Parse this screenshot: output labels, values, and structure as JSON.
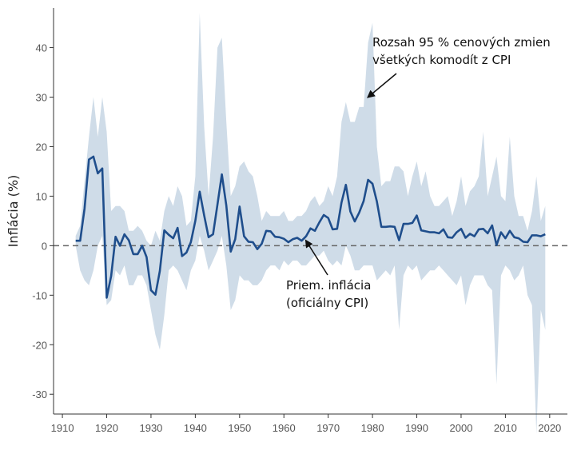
{
  "chart_data": {
    "type": "line",
    "title": "",
    "xlabel": "",
    "ylabel": "Inflácia  (%)",
    "xlim": [
      1908,
      2024
    ],
    "ylim": [
      -34,
      48
    ],
    "x_ticks": [
      1910,
      1920,
      1930,
      1940,
      1950,
      1960,
      1970,
      1980,
      1990,
      2000,
      2010,
      2020
    ],
    "y_ticks": [
      -30,
      -20,
      -10,
      0,
      10,
      20,
      30,
      40
    ],
    "grid": false,
    "zero_line": true,
    "colors": {
      "line": "#1f4e8c",
      "band": "#cfdce8",
      "zero": "#666666",
      "axis": "#333333"
    },
    "annotations": [
      {
        "id": "band",
        "lines": [
          "Rozsah 95 % cenových zmien",
          "všetkých komodít z CPI"
        ],
        "arrow_to": [
          1979,
          30
        ]
      },
      {
        "id": "line",
        "lines": [
          "Priem. inflácia",
          "(oficiálny CPI)"
        ],
        "arrow_to": [
          1965,
          1
        ]
      }
    ],
    "series": [
      {
        "name": "Priem. inflácia (oficiálny CPI)",
        "type": "line",
        "x": [
          1913,
          1914,
          1915,
          1916,
          1917,
          1918,
          1919,
          1920,
          1921,
          1922,
          1923,
          1924,
          1925,
          1926,
          1927,
          1928,
          1929,
          1930,
          1931,
          1932,
          1933,
          1934,
          1935,
          1936,
          1937,
          1938,
          1939,
          1940,
          1941,
          1942,
          1943,
          1944,
          1945,
          1946,
          1947,
          1948,
          1949,
          1950,
          1951,
          1952,
          1953,
          1954,
          1955,
          1956,
          1957,
          1958,
          1959,
          1960,
          1961,
          1962,
          1963,
          1964,
          1965,
          1966,
          1967,
          1968,
          1969,
          1970,
          1971,
          1972,
          1973,
          1974,
          1975,
          1976,
          1977,
          1978,
          1979,
          1980,
          1981,
          1982,
          1983,
          1984,
          1985,
          1986,
          1987,
          1988,
          1989,
          1990,
          1991,
          1992,
          1993,
          1994,
          1995,
          1996,
          1997,
          1998,
          1999,
          2000,
          2001,
          2002,
          2003,
          2004,
          2005,
          2006,
          2007,
          2008,
          2009,
          2010,
          2011,
          2012,
          2013,
          2014,
          2015,
          2016,
          2017,
          2018,
          2019
        ],
        "y": [
          1.0,
          1.0,
          7.5,
          17.4,
          18.0,
          14.6,
          15.6,
          -10.5,
          -6.1,
          1.8,
          0.0,
          2.3,
          1.1,
          -1.7,
          -1.7,
          0.0,
          -2.3,
          -9.0,
          -9.9,
          -5.1,
          3.1,
          2.2,
          1.5,
          3.6,
          -2.1,
          -1.4,
          0.7,
          5.0,
          10.9,
          6.1,
          1.7,
          2.3,
          8.3,
          14.4,
          8.1,
          -1.2,
          1.3,
          7.9,
          1.9,
          0.8,
          0.7,
          -0.7,
          0.4,
          3.0,
          2.9,
          1.8,
          1.7,
          1.4,
          0.7,
          1.3,
          1.6,
          1.0,
          1.9,
          3.5,
          3.0,
          4.7,
          6.2,
          5.6,
          3.3,
          3.4,
          8.7,
          12.3,
          6.9,
          4.9,
          6.7,
          9.0,
          13.3,
          12.5,
          8.9,
          3.8,
          3.8,
          3.9,
          3.8,
          1.1,
          4.4,
          4.4,
          4.6,
          6.1,
          3.1,
          2.9,
          2.7,
          2.7,
          2.5,
          3.3,
          1.7,
          1.6,
          2.7,
          3.4,
          1.6,
          2.4,
          1.9,
          3.3,
          3.4,
          2.5,
          4.1,
          0.1,
          2.7,
          1.5,
          3.0,
          1.7,
          1.5,
          0.8,
          0.7,
          2.1,
          2.1,
          1.9,
          2.3
        ]
      },
      {
        "name": "Rozsah 95 % cenových zmien všetkých komodít z CPI",
        "type": "area",
        "x": [
          1913,
          1914,
          1915,
          1916,
          1917,
          1918,
          1919,
          1920,
          1921,
          1922,
          1923,
          1924,
          1925,
          1926,
          1927,
          1928,
          1929,
          1930,
          1931,
          1932,
          1933,
          1934,
          1935,
          1936,
          1937,
          1938,
          1939,
          1940,
          1941,
          1942,
          1943,
          1944,
          1945,
          1946,
          1947,
          1948,
          1949,
          1950,
          1951,
          1952,
          1953,
          1954,
          1955,
          1956,
          1957,
          1958,
          1959,
          1960,
          1961,
          1962,
          1963,
          1964,
          1965,
          1966,
          1967,
          1968,
          1969,
          1970,
          1971,
          1972,
          1973,
          1974,
          1975,
          1976,
          1977,
          1978,
          1979,
          1980,
          1981,
          1982,
          1983,
          1984,
          1985,
          1986,
          1987,
          1988,
          1989,
          1990,
          1991,
          1992,
          1993,
          1994,
          1995,
          1996,
          1997,
          1998,
          1999,
          2000,
          2001,
          2002,
          2003,
          2004,
          2005,
          2006,
          2007,
          2008,
          2009,
          2010,
          2011,
          2012,
          2013,
          2014,
          2015,
          2016,
          2017,
          2018,
          2019
        ],
        "upper": [
          2,
          4,
          13,
          22,
          30,
          22,
          30,
          23,
          7,
          8,
          8,
          7,
          3,
          3,
          4,
          3,
          1,
          0,
          3,
          1,
          7,
          10,
          8,
          12,
          10,
          4,
          5,
          14,
          47,
          24,
          10,
          22,
          40,
          42,
          25,
          10,
          12,
          16,
          17,
          15,
          14,
          10,
          5,
          7,
          6,
          6,
          6,
          7,
          5,
          5,
          6,
          6,
          7,
          9,
          10,
          8,
          9,
          12,
          10,
          14,
          25,
          29,
          25,
          25,
          28,
          28,
          41,
          45,
          20,
          12,
          13,
          13,
          16,
          16,
          15,
          10,
          14,
          17,
          12,
          15,
          10,
          8,
          8,
          9,
          10,
          6,
          9,
          14,
          8,
          11,
          12,
          14,
          23,
          10,
          14,
          18,
          10,
          9,
          22,
          10,
          6,
          6,
          3,
          7,
          14,
          5,
          8
        ],
        "lower": [
          0,
          -5,
          -7,
          -8,
          -5,
          0,
          2,
          -12,
          -11,
          -5,
          -6,
          -4,
          -8,
          -8,
          -6,
          -6,
          -8,
          -13,
          -18,
          -21,
          -14,
          -5,
          -4,
          -5,
          -7,
          -9,
          -5,
          -3,
          2,
          -1,
          -5,
          -3,
          -1,
          2,
          -4,
          -13,
          -11,
          -6,
          -7,
          -7,
          -8,
          -8,
          -7,
          -5,
          -4,
          -4,
          -5,
          -3,
          -4,
          -3,
          -3,
          -4,
          -4,
          -3,
          -2,
          -2,
          -1,
          -3,
          -4,
          -3,
          -4,
          0,
          -2,
          -5,
          -5,
          -4,
          -4,
          -4,
          -7,
          -6,
          -5,
          -6,
          -4,
          -17,
          -6,
          -4,
          -5,
          -4,
          -7,
          -6,
          -5,
          -5,
          -4,
          -5,
          -6,
          -7,
          -8,
          -6,
          -12,
          -8,
          -6,
          -6,
          -6,
          -8,
          -9,
          -28,
          -6,
          -4,
          -5,
          -7,
          -6,
          -4,
          -10,
          -12,
          -38,
          -13,
          -17
        ]
      }
    ]
  }
}
